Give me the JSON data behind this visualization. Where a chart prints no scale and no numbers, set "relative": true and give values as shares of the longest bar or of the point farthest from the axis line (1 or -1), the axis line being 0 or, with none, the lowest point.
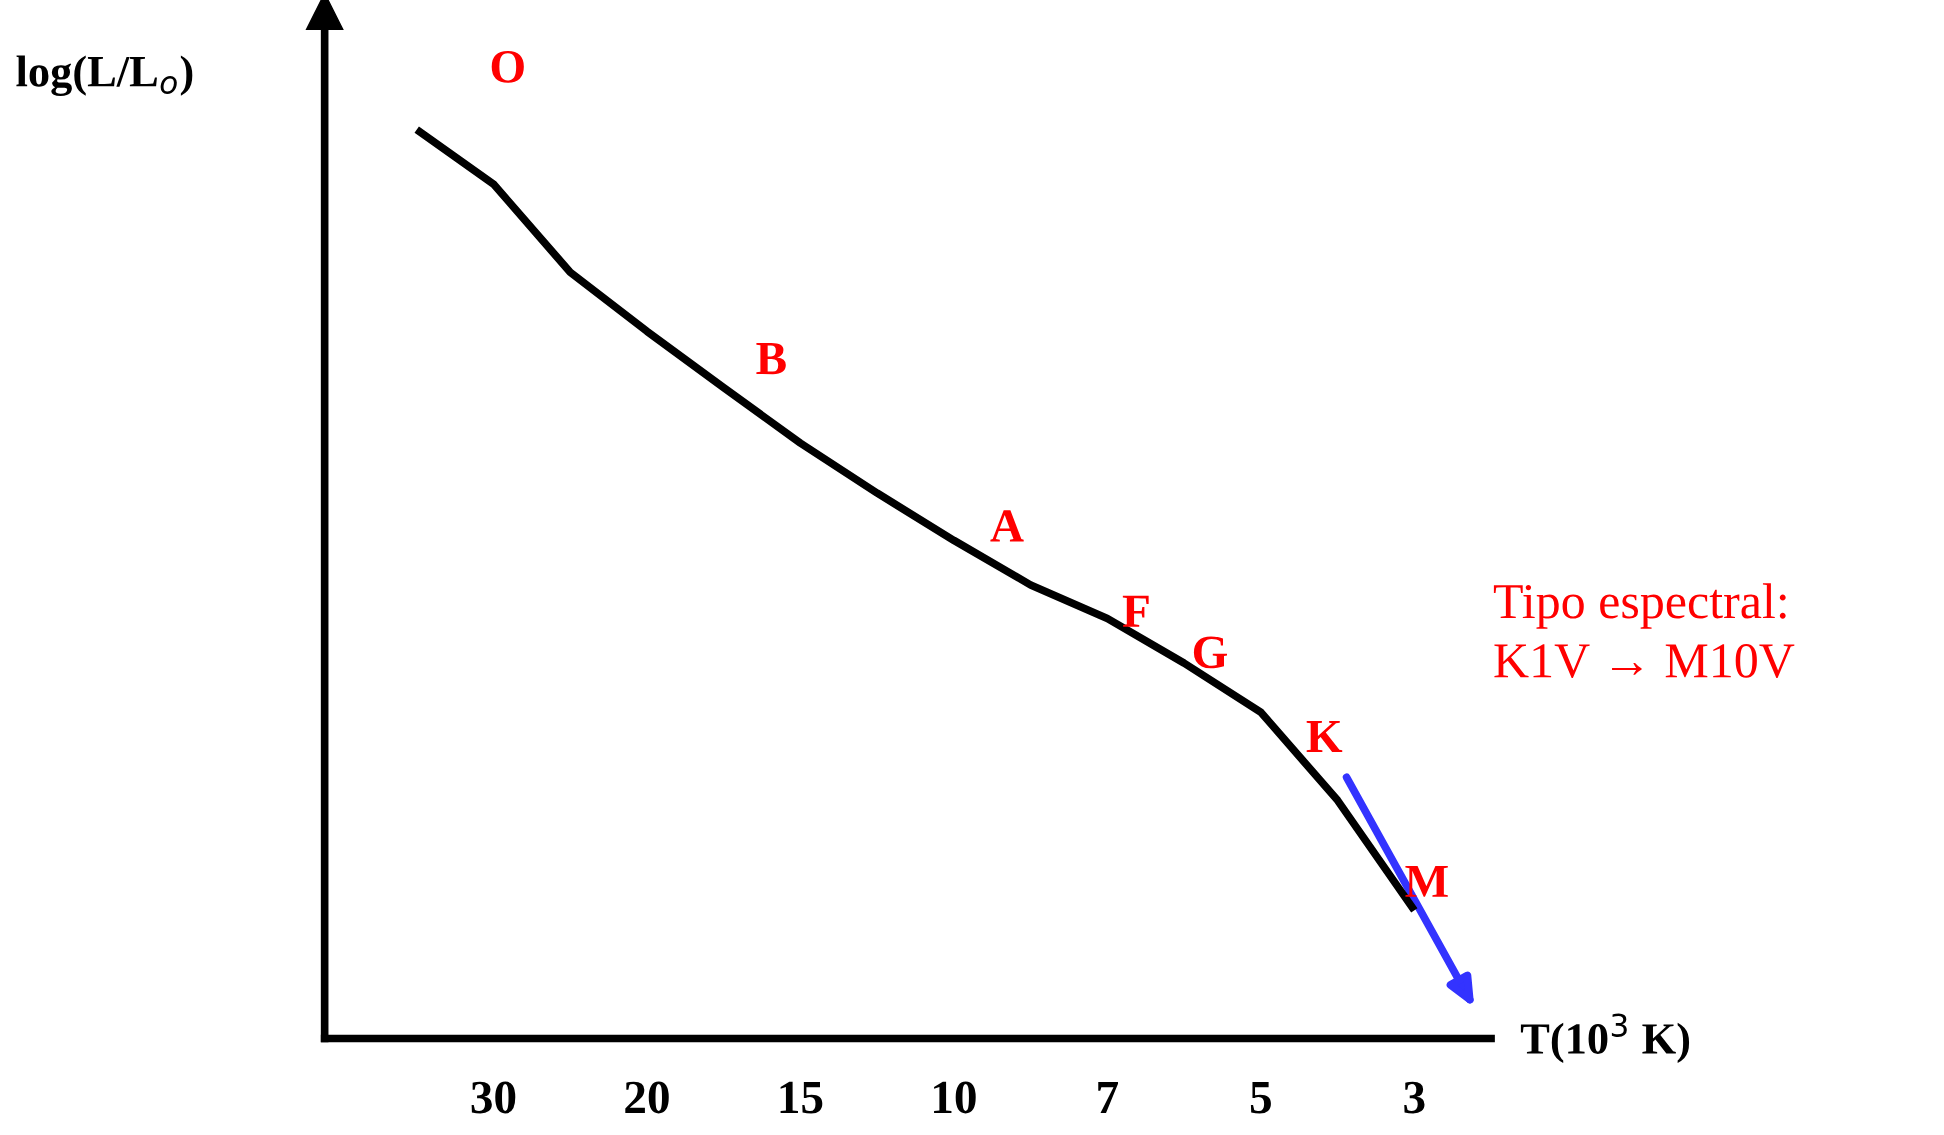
{
  "chart_data": {
    "type": "line",
    "relative": true,
    "xlabel": "T(10$^{3}$ K)",
    "ylabel": "log(L/L$_{o}$)",
    "categories": [
      null,
      "30",
      null,
      "20",
      null,
      "15",
      null,
      "10",
      null,
      "7",
      null,
      "5",
      null,
      "3",
      null
    ],
    "legend": false,
    "grid": false,
    "series": [
      {
        "color": "#000000",
        "values": [
          1.0,
          0.94,
          0.843,
          0.778,
          0.716,
          0.655,
          0.6,
          0.548,
          0.499,
          0.462,
          0.413,
          0.359,
          0.262,
          0.141,
          null
        ]
      }
    ],
    "annotations": [
      "O",
      "B",
      "A",
      "F",
      "G",
      "K",
      "M",
      "Tipo espectral:\nK1V → M10V"
    ]
  }
}
